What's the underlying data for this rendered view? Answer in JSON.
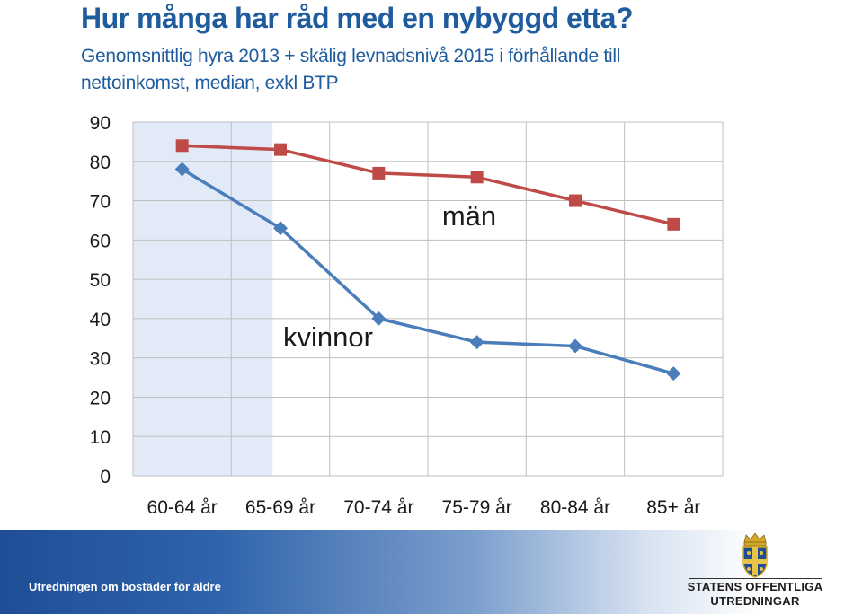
{
  "header": {
    "title": "Hur många har råd med en nybyggd etta?",
    "subtitle": "Genomsnittlig hyra 2013 + skälig levnadsnivå 2015 i förhållande till nettoinkomst, median, exkl BTP"
  },
  "footer": {
    "text": "Utredningen om bostäder för äldre",
    "logo_line1": "STATENS OFFENTLIGA",
    "logo_line2": "UTREDNINGAR"
  },
  "colors": {
    "title": "#1f5c9e",
    "men_line": "#be4b48",
    "women_line": "#4a7ebb",
    "highlight_band": "#e3eaf7",
    "grid": "#bfbfbf"
  },
  "chart_data": {
    "type": "line",
    "categories": [
      "60-64 år",
      "65-69 år",
      "70-74 år",
      "75-79 år",
      "80-84 år",
      "85+ år"
    ],
    "ylim": [
      0,
      90
    ],
    "yticks": [
      0,
      10,
      20,
      30,
      40,
      50,
      60,
      70,
      80,
      90
    ],
    "grid": true,
    "highlighted_category": "60-64 år",
    "series": [
      {
        "name": "män",
        "marker": "square",
        "color": "#be4b48",
        "values": [
          84,
          83,
          77,
          76,
          70,
          64
        ]
      },
      {
        "name": "kvinnor",
        "marker": "diamond",
        "color": "#4a7ebb",
        "values": [
          78,
          63,
          40,
          34,
          33,
          26
        ]
      }
    ]
  }
}
